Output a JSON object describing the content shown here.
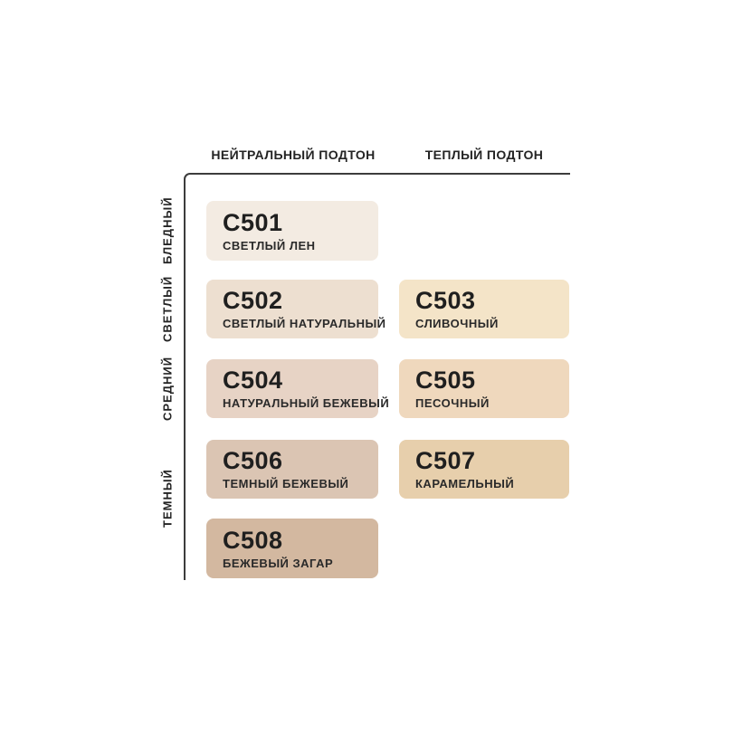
{
  "colors": {
    "background": "#ffffff",
    "axis": "#3c3c3c",
    "text": "#242424"
  },
  "chart_data": {
    "type": "heatmap",
    "title": "",
    "x_categories": [
      "НЕЙТРАЛЬНЫЙ ПОДТОН",
      "ТЕПЛЫЙ ПОДТОН"
    ],
    "y_categories": [
      "БЛЕДНЫЙ",
      "СВЕТЛЫЙ",
      "СРЕДНИЙ",
      "ТЕМНЫЙ"
    ],
    "legend_position": "none",
    "grid": false,
    "cells": [
      {
        "code": "C501",
        "name": "СВЕТЛЫЙ ЛЕН",
        "color": "#f3ebe2",
        "column": "НЕЙТРАЛЬНЫЙ ПОДТОН",
        "row": "БЛЕДНЫЙ"
      },
      {
        "code": "C502",
        "name": "СВЕТЛЫЙ НАТУРАЛЬНЫЙ",
        "color": "#eddfd0",
        "column": "НЕЙТРАЛЬНЫЙ ПОДТОН",
        "row": "СВЕТЛЫЙ"
      },
      {
        "code": "C503",
        "name": "СЛИВОЧНЫЙ",
        "color": "#f4e4c8",
        "column": "ТЕПЛЫЙ ПОДТОН",
        "row": "СВЕТЛЫЙ"
      },
      {
        "code": "C504",
        "name": "НАТУРАЛЬНЫЙ БЕЖЕВЫЙ",
        "color": "#e7d3c5",
        "column": "НЕЙТРАЛЬНЫЙ ПОДТОН",
        "row": "СРЕДНИЙ"
      },
      {
        "code": "C505",
        "name": "ПЕСОЧНЫЙ",
        "color": "#efd8bd",
        "column": "ТЕПЛЫЙ ПОДТОН",
        "row": "СРЕДНИЙ"
      },
      {
        "code": "C506",
        "name": "ТЕМНЫЙ БЕЖЕВЫЙ",
        "color": "#dbc5b3",
        "column": "НЕЙТРАЛЬНЫЙ ПОДТОН",
        "row": "ТЕМНЫЙ"
      },
      {
        "code": "C507",
        "name": "КАРАМЕЛЬНЫЙ",
        "color": "#e7cfac",
        "column": "ТЕПЛЫЙ ПОДТОН",
        "row": "ТЕМНЫЙ"
      },
      {
        "code": "C508",
        "name": "БЕЖЕВЫЙ ЗАГАР",
        "color": "#d3b8a0",
        "column": "НЕЙТРАЛЬНЫЙ ПОДТОН",
        "row": "ТЕМНЫЙ"
      }
    ]
  }
}
